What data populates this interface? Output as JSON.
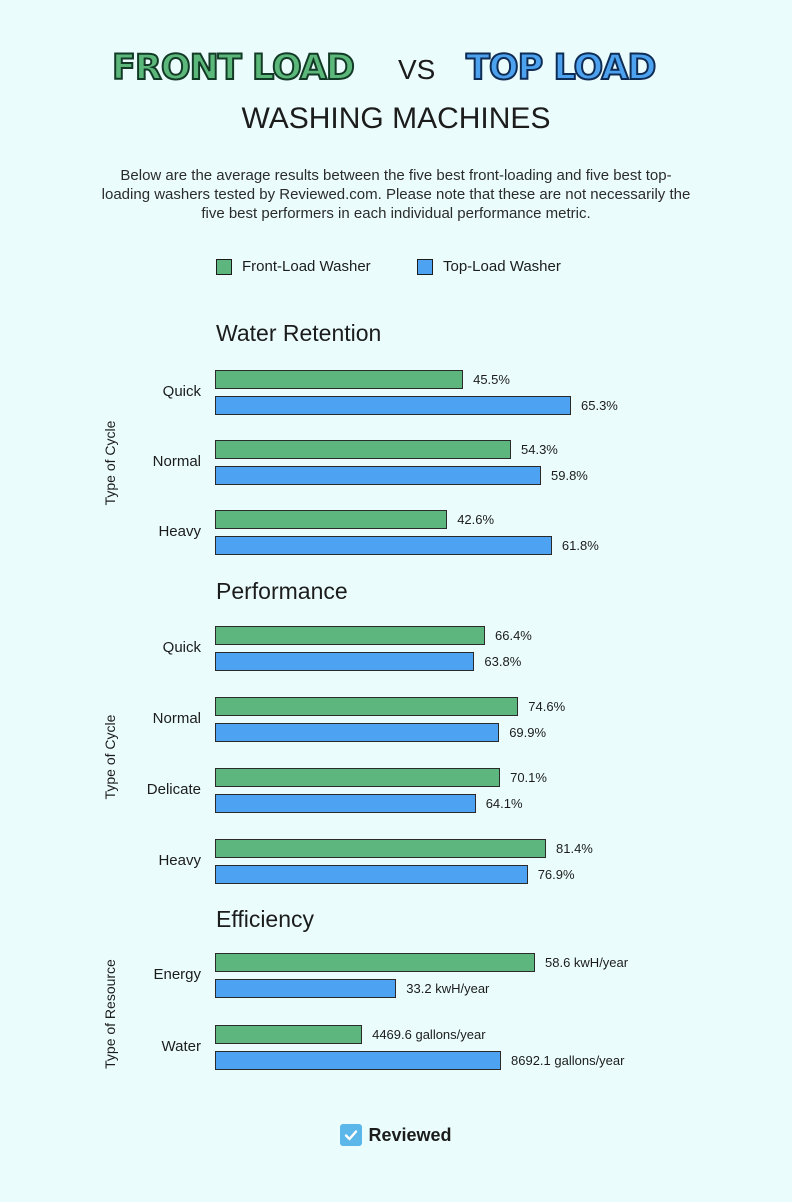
{
  "header": {
    "front_word": "FRONT LOAD",
    "vs_word": "VS",
    "top_word": "TOP LOAD",
    "subtitle": "WASHING MACHINES",
    "intro": "Below are the average results between the five best front-loading and five best top-loading washers tested by Reviewed.com. Please note that these are not necessarily the five best performers in each individual performance metric."
  },
  "legend": {
    "front": "Front-Load Washer",
    "top": "Top-Load Washer"
  },
  "colors": {
    "front": "#5db67e",
    "top": "#4da2f2",
    "background": "#eafdfc"
  },
  "footer": {
    "brand": "Reviewed",
    "icon": "check-icon"
  },
  "chart_data": [
    {
      "type": "bar",
      "orientation": "horizontal",
      "title": "Water Retention",
      "ylabel": "Type of Cycle",
      "categories": [
        "Quick",
        "Normal",
        "Heavy"
      ],
      "series": [
        {
          "name": "Front-Load Washer",
          "values": [
            45.5,
            54.3,
            42.6
          ],
          "labels": [
            "45.5%",
            "54.3%",
            "42.6%"
          ]
        },
        {
          "name": "Top-Load Washer",
          "values": [
            65.3,
            59.8,
            61.8
          ],
          "labels": [
            "65.3%",
            "59.8%",
            "61.8%"
          ]
        }
      ]
    },
    {
      "type": "bar",
      "orientation": "horizontal",
      "title": "Performance",
      "ylabel": "Type of Cycle",
      "categories": [
        "Quick",
        "Normal",
        "Delicate",
        "Heavy"
      ],
      "series": [
        {
          "name": "Front-Load Washer",
          "values": [
            66.4,
            74.6,
            70.1,
            81.4
          ],
          "labels": [
            "66.4%",
            "74.6%",
            "70.1%",
            "81.4%"
          ]
        },
        {
          "name": "Top-Load Washer",
          "values": [
            63.8,
            69.9,
            64.1,
            76.9
          ],
          "labels": [
            "63.8%",
            "69.9%",
            "64.1%",
            "76.9%"
          ]
        }
      ]
    },
    {
      "type": "bar",
      "orientation": "horizontal",
      "title": "Efficiency",
      "ylabel": "Type of Resource",
      "categories": [
        "Energy",
        "Water"
      ],
      "series": [
        {
          "name": "Front-Load Washer",
          "values": [
            58.6,
            4469.6
          ],
          "labels": [
            "58.6 kwH/year",
            "4469.6 gallons/year"
          ]
        },
        {
          "name": "Top-Load Washer",
          "values": [
            33.2,
            8692.1
          ],
          "labels": [
            "33.2 kwH/year",
            "8692.1 gallons/year"
          ]
        }
      ]
    }
  ]
}
